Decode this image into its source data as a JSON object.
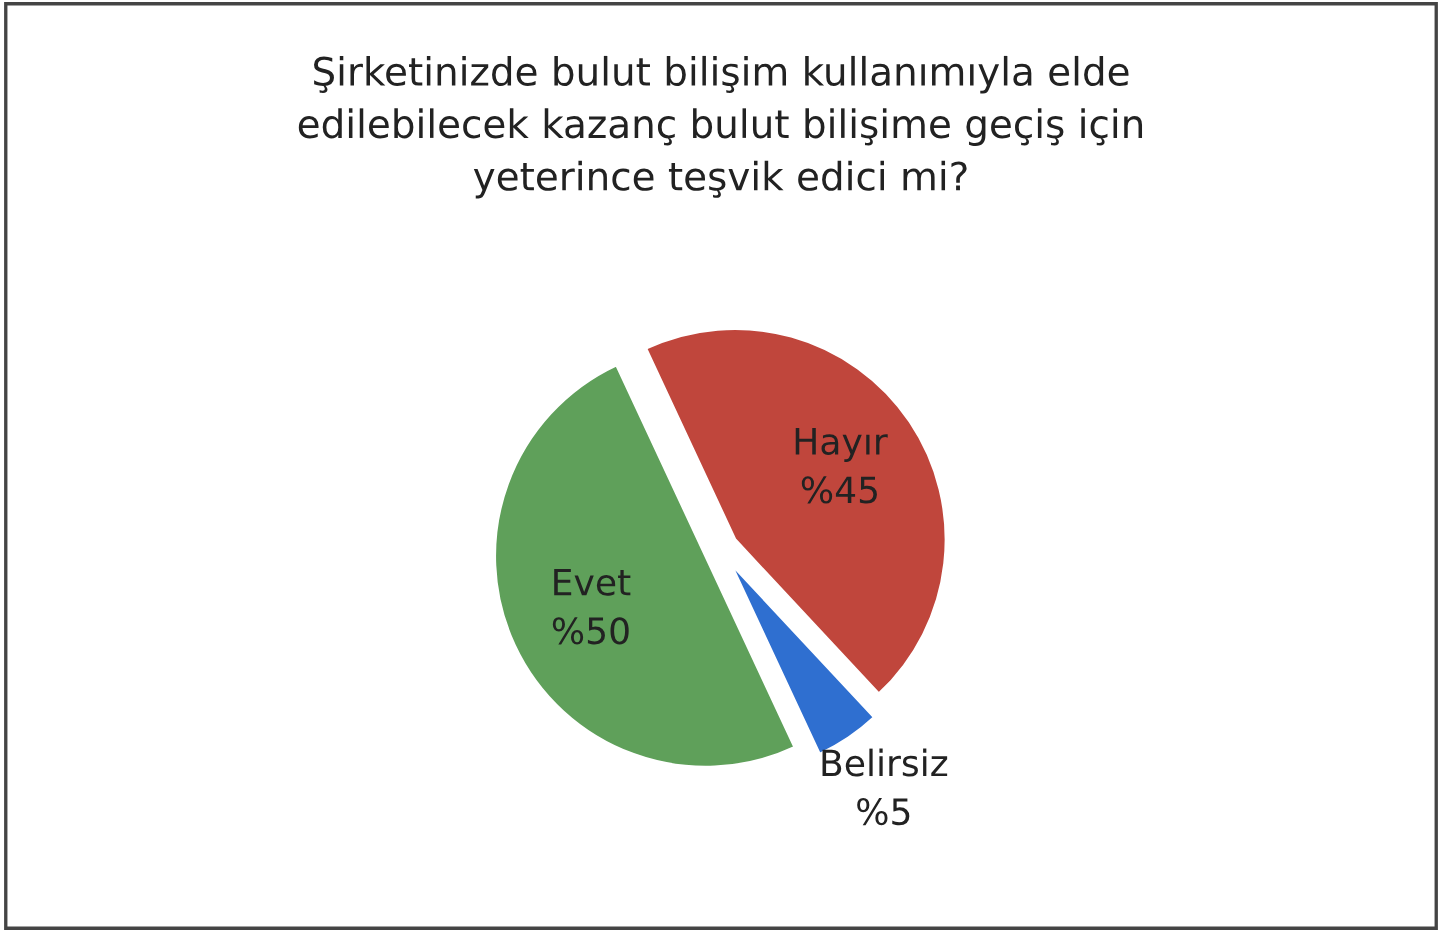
{
  "chart_data": {
    "type": "pie",
    "title": "Şirketinizde bulut bilişim kullanımıyla elde\nedilebilecek kazanç bulut bilişime geçiş için\nyeterince teşvik edici mi?",
    "categories": [
      "Hayır",
      "Belirsiz",
      "Evet"
    ],
    "values": [
      45,
      5,
      50
    ],
    "value_labels": [
      "%45",
      "%5",
      "%50"
    ],
    "colors": [
      "#c0463c",
      "#2f6fd0",
      "#5fa05a"
    ],
    "legend": false
  }
}
